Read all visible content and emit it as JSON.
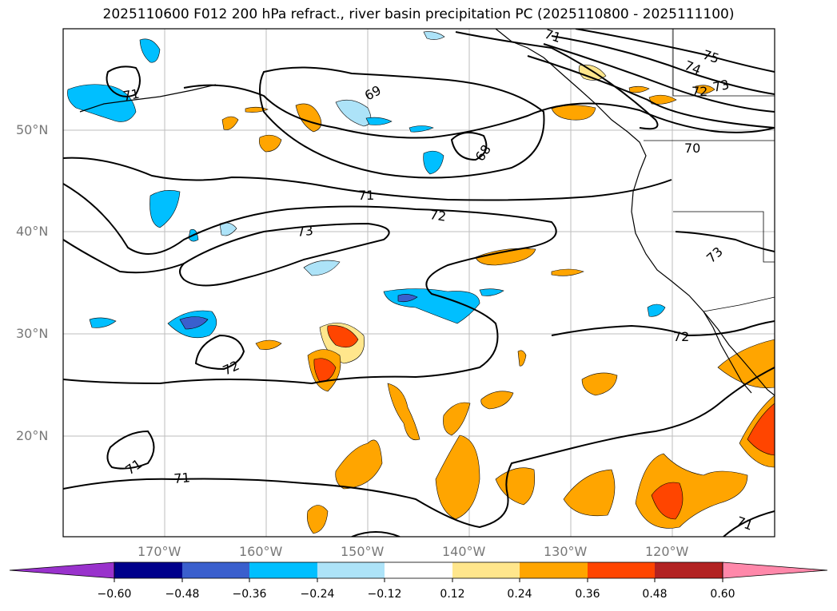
{
  "title": "2025110600 F012 200 hPa refract., river basin precipitation PC (2025110800 - 2025111100)",
  "axes": {
    "lat_labels": [
      "50°N",
      "40°N",
      "30°N",
      "20°N"
    ],
    "lon_labels": [
      "170°W",
      "160°W",
      "150°W",
      "140°W",
      "130°W",
      "120°W"
    ]
  },
  "contour_labels": [
    "75",
    "74",
    "73",
    "72",
    "71",
    "70",
    "69",
    "68",
    "71",
    "72",
    "73",
    "71",
    "72",
    "72",
    "73",
    "71",
    "71",
    "71"
  ],
  "colorbar": {
    "ticks": [
      "−0.60",
      "−0.48",
      "−0.36",
      "−0.24",
      "−0.12",
      "0.12",
      "0.24",
      "0.36",
      "0.48",
      "0.60"
    ],
    "colors": [
      "#9932CC",
      "#00008B",
      "#3A5FCD",
      "#00BFFF",
      "#ADE3F8",
      "#FFFFFF",
      "#FFE68C",
      "#FFA500",
      "#FF4500",
      "#B22222",
      "#FF88AA"
    ]
  }
}
